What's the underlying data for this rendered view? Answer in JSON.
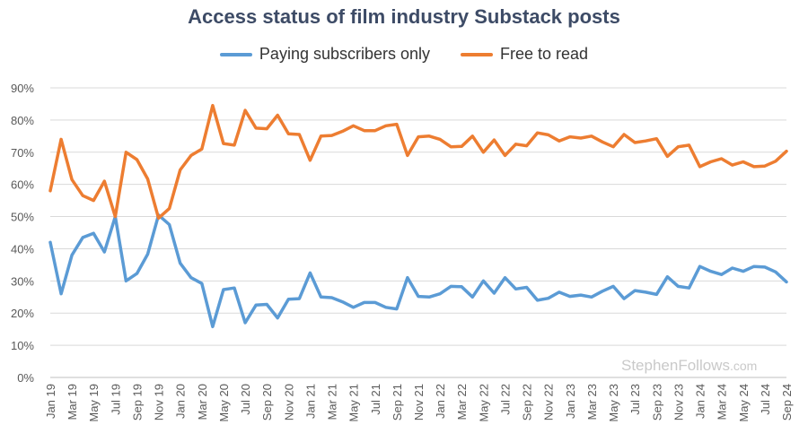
{
  "chart_data": {
    "type": "line",
    "title": "Access status of film industry Substack posts",
    "xlabel": "",
    "ylabel": "",
    "ylim": [
      0,
      90
    ],
    "yticks": [
      "0%",
      "10%",
      "20%",
      "30%",
      "40%",
      "50%",
      "60%",
      "70%",
      "80%",
      "90%"
    ],
    "grid": true,
    "legend_position": "top-center",
    "x": [
      "Jan 19",
      "Feb 19",
      "Mar 19",
      "Apr 19",
      "May 19",
      "Jun 19",
      "Jul 19",
      "Aug 19",
      "Sep 19",
      "Oct 19",
      "Nov 19",
      "Dec 19",
      "Jan 20",
      "Feb 20",
      "Mar 20",
      "Apr 20",
      "May 20",
      "Jun 20",
      "Jul 20",
      "Aug 20",
      "Sep 20",
      "Oct 20",
      "Nov 20",
      "Dec 20",
      "Jan 21",
      "Feb 21",
      "Mar 21",
      "Apr 21",
      "May 21",
      "Jun 21",
      "Jul 21",
      "Aug 21",
      "Sep 21",
      "Oct 21",
      "Nov 21",
      "Dec 21",
      "Jan 22",
      "Feb 22",
      "Mar 22",
      "Apr 22",
      "May 22",
      "Jun 22",
      "Jul 22",
      "Aug 22",
      "Sep 22",
      "Oct 22",
      "Nov 22",
      "Dec 22",
      "Jan 23",
      "Feb 23",
      "Mar 23",
      "Apr 23",
      "May 23",
      "Jun 23",
      "Jul 23",
      "Aug 23",
      "Sep 23",
      "Oct 23",
      "Nov 23",
      "Dec 23",
      "Jan 24",
      "Feb 24",
      "Mar 24",
      "Apr 24",
      "May 24",
      "Jun 24",
      "Jul 24",
      "Aug 24",
      "Sep 24"
    ],
    "x_tick_labels": [
      "Jan 19",
      "Mar 19",
      "May 19",
      "Jul 19",
      "Sep 19",
      "Nov 19",
      "Jan 20",
      "Mar 20",
      "May 20",
      "Jul 20",
      "Sep 20",
      "Nov 20",
      "Jan 21",
      "Mar 21",
      "May 21",
      "Jul 21",
      "Sep 21",
      "Nov 21",
      "Jan 22",
      "Mar 22",
      "May 22",
      "Jul 22",
      "Sep 22",
      "Nov 22",
      "Jan 23",
      "Mar 23",
      "May 23",
      "Jul 23",
      "Sep 23",
      "Nov 23",
      "Jan 24",
      "Mar 24",
      "May 24",
      "Jul 24",
      "Sep 24"
    ],
    "series": [
      {
        "name": "Paying subscribers only",
        "color": "#5b9bd5",
        "values": [
          42,
          26,
          38,
          43.5,
          44.8,
          39,
          50,
          30,
          32.3,
          38.3,
          50.5,
          47.5,
          35.5,
          31,
          29.2,
          15.8,
          27.3,
          27.8,
          17,
          22.5,
          22.7,
          18.5,
          24.3,
          24.5,
          32.5,
          25,
          24.8,
          23.5,
          21.8,
          23.3,
          23.3,
          21.8,
          21.3,
          31,
          25.2,
          25,
          26,
          28.3,
          28.2,
          25,
          30,
          26.2,
          31,
          27.5,
          28,
          24,
          24.6,
          26.5,
          25.2,
          25.6,
          25,
          26.8,
          28.3,
          24.5,
          27,
          26.5,
          25.8,
          31.3,
          28.3,
          27.8,
          34.5,
          33,
          32,
          34,
          33,
          34.5,
          34.3,
          32.8,
          29.7
        ]
      },
      {
        "name": "Free to read",
        "color": "#ed7d31",
        "values": [
          58,
          74,
          61.5,
          56.5,
          55,
          61,
          50,
          70,
          67.7,
          61.7,
          49.5,
          52.5,
          64.5,
          69,
          71,
          84.5,
          72.7,
          72.2,
          83,
          77.5,
          77.3,
          81.5,
          75.7,
          75.5,
          67.5,
          75,
          75.2,
          76.5,
          78.2,
          76.7,
          76.7,
          78.2,
          78.7,
          69,
          74.8,
          75,
          74,
          71.7,
          71.8,
          75,
          70,
          73.8,
          69,
          72.5,
          72,
          76,
          75.4,
          73.5,
          74.8,
          74.4,
          75,
          73.2,
          71.7,
          75.5,
          73,
          73.5,
          74.2,
          68.7,
          71.7,
          72.2,
          65.5,
          67,
          68,
          66,
          67,
          65.5,
          65.7,
          67.2,
          70.3
        ]
      }
    ]
  },
  "watermark": {
    "main": "StephenFollows",
    "suffix": ".com"
  }
}
